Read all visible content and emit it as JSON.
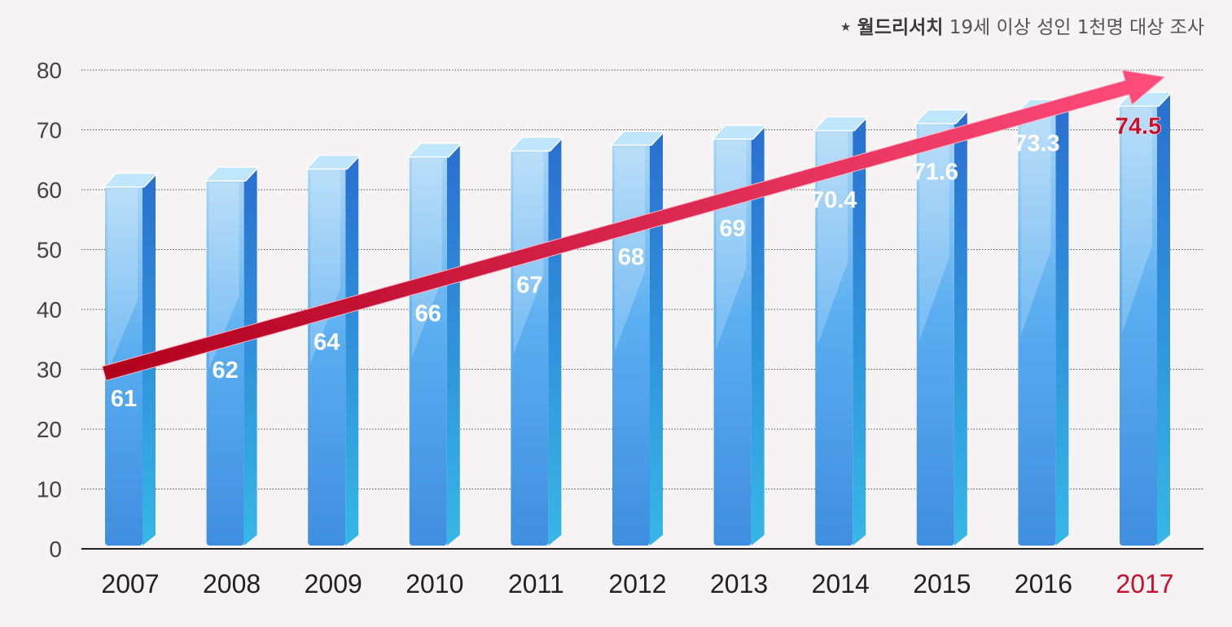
{
  "source_note": {
    "star": "★",
    "brand": "월드리서치",
    "text": "19세 이상 성인 1천명 대상 조사"
  },
  "colors": {
    "bar_light": "#a9d6f7",
    "bar_mid": "#5aaef0",
    "bar_dark": "#3f8ee0",
    "bar_side": "#2a6fd0",
    "bar_side_bottom": "#36b7e6",
    "bar_top": "#bfe6fb",
    "value_label": "#ffffff",
    "highlight": "#c8102e",
    "arrow_start": "#b0001c",
    "arrow_end": "#ff4d7d",
    "axis_text": "#444444",
    "year_text": "#222222",
    "grid": "#555555",
    "background": "#f5f3f4"
  },
  "chart_data": {
    "type": "bar",
    "categories": [
      "2007",
      "2008",
      "2009",
      "2010",
      "2011",
      "2012",
      "2013",
      "2014",
      "2015",
      "2016",
      "2017"
    ],
    "series": [
      {
        "values": [
          61,
          62,
          64,
          66,
          67,
          68,
          69,
          70.4,
          71.6,
          73.3,
          74.5
        ],
        "labels": [
          "61",
          "62",
          "64",
          "66",
          "67",
          "68",
          "69",
          "70.4",
          "71.6",
          "73.3",
          "74.5"
        ]
      }
    ],
    "highlight_category": "2017",
    "ylim": [
      0,
      80
    ],
    "yticks": [
      0,
      10,
      20,
      30,
      40,
      50,
      60,
      70,
      80
    ],
    "grid": true,
    "trend_arrow": true
  }
}
